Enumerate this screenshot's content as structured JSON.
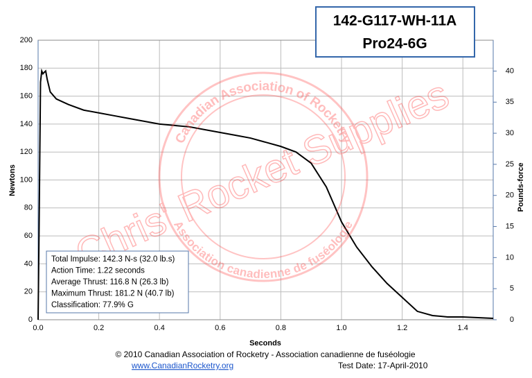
{
  "chart_data": {
    "type": "line",
    "title": "142-G117-WH-11A",
    "subtitle": "Pro24-6G",
    "x_label": "Seconds",
    "y_label": "Newtons",
    "y2_label": "Pounds-force",
    "x": [
      0,
      0.003,
      0.008,
      0.012,
      0.016,
      0.02,
      0.025,
      0.03,
      0.04,
      0.06,
      0.08,
      0.1,
      0.15,
      0.2,
      0.25,
      0.3,
      0.35,
      0.4,
      0.45,
      0.5,
      0.55,
      0.6,
      0.65,
      0.7,
      0.75,
      0.8,
      0.85,
      0.9,
      0.95,
      1.0,
      1.05,
      1.1,
      1.15,
      1.2,
      1.25,
      1.3,
      1.35,
      1.4,
      1.45,
      1.5
    ],
    "series": [
      {
        "color": "#000000",
        "values": [
          0,
          60,
          170,
          178,
          176,
          177,
          178,
          172,
          163,
          158,
          156,
          154,
          150,
          148,
          146,
          144,
          142,
          140,
          139,
          138,
          136,
          134,
          132,
          130,
          127,
          124,
          120,
          112,
          95,
          70,
          52,
          38,
          26,
          16,
          6,
          3,
          2,
          2,
          1.5,
          1
        ]
      }
    ],
    "xlim": [
      0,
      1.5
    ],
    "xticks": [
      {
        "value": 0,
        "label": "0.0"
      },
      0.2,
      0.4,
      0.6,
      0.8,
      {
        "value": 1,
        "label": "1.0"
      },
      1.2,
      1.4
    ],
    "ylim": [
      0,
      200
    ],
    "yticks": [
      0,
      20,
      40,
      60,
      80,
      100,
      120,
      140,
      160,
      180,
      200
    ],
    "y2lim": [
      0,
      44.96
    ],
    "y2ticks": [
      0,
      5,
      10,
      15,
      20,
      25,
      30,
      35,
      40
    ],
    "grid": true,
    "annotations": [
      "Total Impulse: 142.3 N-s (32.0 lb.s)",
      "Action Time: 1.22 seconds",
      "Average Thrust: 116.8 N (26.3 lb)",
      "Maximum Thrust: 181.2 N (40.7 lb)",
      "Classification: 77.9% G"
    ]
  },
  "watermark": {
    "text": "Chris' Rocket Supplies",
    "ring_top": "Canadian Association of Rocketry",
    "ring_bottom": "Association canadienne de fuséologie"
  },
  "footer": {
    "copyright": "© 2010 Canadian Association of Rocketry - Association canadienne de fuséologie",
    "website": "www.CanadianRocketry.org",
    "test_date": "Test  Date: 17-April-2010"
  }
}
